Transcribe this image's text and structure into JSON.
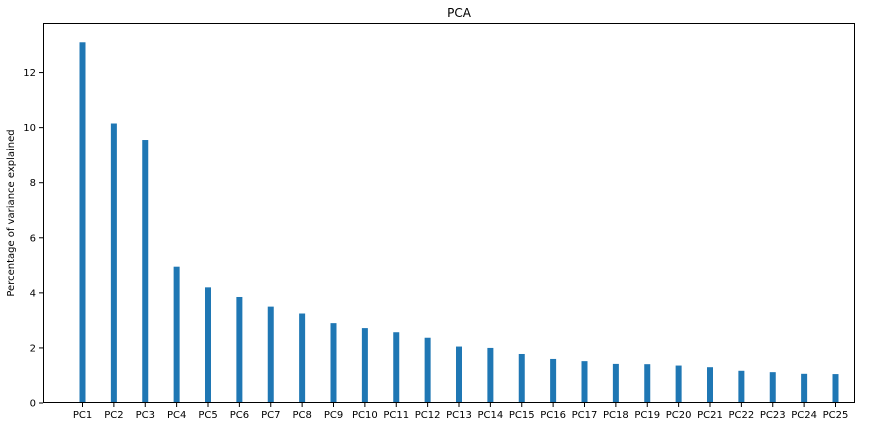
{
  "chart_data": {
    "type": "bar",
    "title": "PCA",
    "xlabel": "",
    "ylabel": "Percentage of variance explained",
    "categories": [
      "PC1",
      "PC2",
      "PC3",
      "PC4",
      "PC5",
      "PC6",
      "PC7",
      "PC8",
      "PC9",
      "PC10",
      "PC11",
      "PC12",
      "PC13",
      "PC14",
      "PC15",
      "PC16",
      "PC17",
      "PC18",
      "PC19",
      "PC20",
      "PC21",
      "PC22",
      "PC23",
      "PC24",
      "PC25"
    ],
    "values": [
      13.1,
      10.15,
      9.55,
      4.95,
      4.2,
      3.85,
      3.5,
      3.25,
      2.9,
      2.72,
      2.57,
      2.37,
      2.05,
      2.0,
      1.78,
      1.6,
      1.52,
      1.42,
      1.41,
      1.36,
      1.3,
      1.17,
      1.12,
      1.06,
      1.05
    ],
    "ylim": [
      0,
      13.8
    ],
    "yticks": [
      0,
      2,
      4,
      6,
      8,
      10,
      12
    ],
    "bar_color": "#1f77b4",
    "grid": false,
    "legend": "none"
  }
}
